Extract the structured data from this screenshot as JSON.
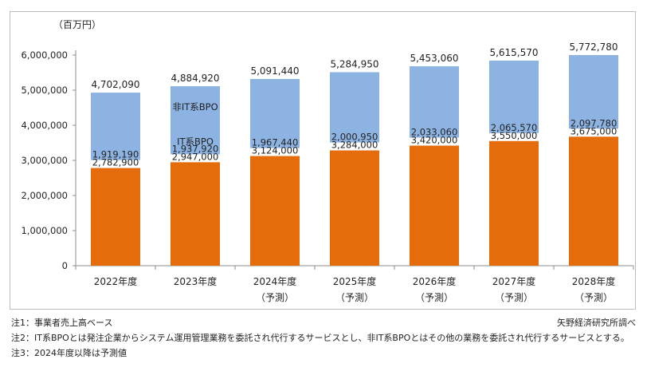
{
  "chart_data": {
    "type": "bar",
    "stacked": true,
    "unit_label": "（百万円）",
    "categories": [
      "2022年度",
      "2023年度",
      "2024年度",
      "2025年度",
      "2026年度",
      "2027年度",
      "2028年度"
    ],
    "category_sublabels": [
      "",
      "",
      "（予測）",
      "（予測）",
      "（予測）",
      "（予測）",
      "（予測）"
    ],
    "series": [
      {
        "name": "IT系BPO",
        "color": "#e46c0a",
        "values": [
          2782900,
          2947000,
          3124000,
          3284000,
          3420000,
          3550000,
          3675000
        ]
      },
      {
        "name": "非IT系BPO",
        "color": "#8db3e2",
        "values": [
          1919190,
          1937920,
          1967440,
          2000950,
          2033060,
          2065570,
          2097780
        ]
      }
    ],
    "totals": [
      4702090,
      4884920,
      5091440,
      5284950,
      5453060,
      5615570,
      5772780
    ],
    "value_labels": {
      "it": [
        "2,782,900",
        "2,947,000",
        "3,124,000",
        "3,284,000",
        "3,420,000",
        "3,550,000",
        "3,675,000"
      ],
      "non_it": [
        "1,919,190",
        "1,937,920",
        "1,967,440",
        "2,000,950",
        "2,033,060",
        "2,065,570",
        "2,097,780"
      ],
      "total": [
        "4,702,090",
        "4,884,920",
        "5,091,440",
        "5,284,950",
        "5,453,060",
        "5,615,570",
        "5,772,780"
      ]
    },
    "series_inline_labels": {
      "it": "IT系BPO",
      "non_it": "非IT系BPO"
    },
    "ylim": [
      0,
      6000000
    ],
    "yticks": [
      0,
      1000000,
      2000000,
      3000000,
      4000000,
      5000000,
      6000000
    ],
    "ytick_labels": [
      "0",
      "1,000,000",
      "2,000,000",
      "3,000,000",
      "4,000,000",
      "5,000,000",
      "6,000,000"
    ],
    "grid": false,
    "legend": "none"
  },
  "notes": [
    "注1：事業者売上高ベース",
    "注2：IT系BPOとは発注企業からシステム運用管理業務を委託され代行するサービスとし、非IT系BPOとはその他の業務を委託され代行するサービスとする。",
    "注3：2024年度以降は予測値"
  ],
  "source": "矢野経済研究所調べ"
}
